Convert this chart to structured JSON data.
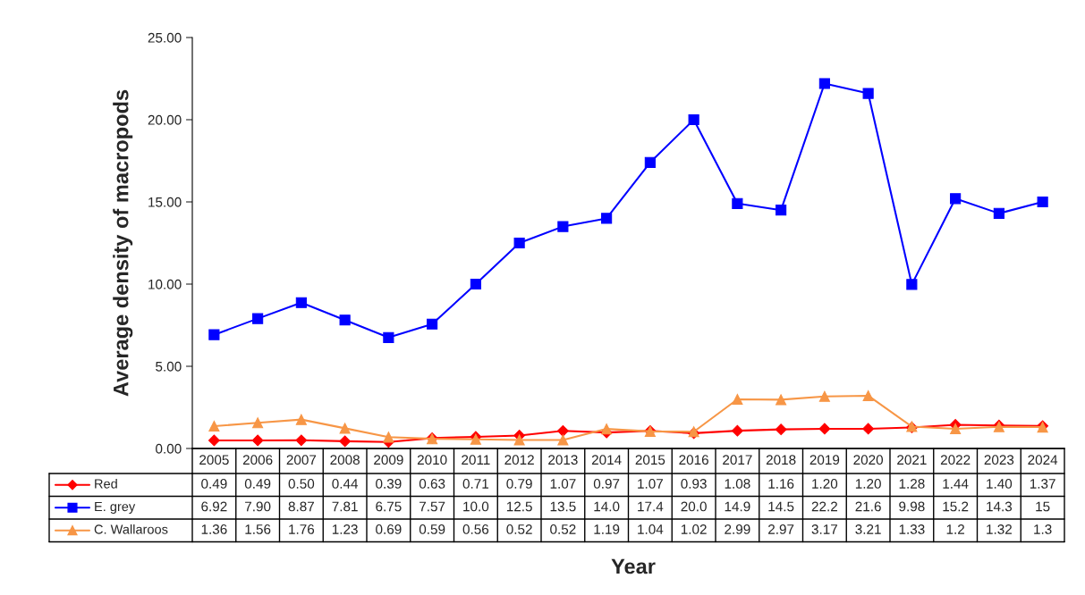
{
  "chart_data": {
    "type": "line",
    "xlabel": "Year",
    "ylabel": "Average density of macropods",
    "categories": [
      "2005",
      "2006",
      "2007",
      "2008",
      "2009",
      "2010",
      "2011",
      "2012",
      "2013",
      "2014",
      "2015",
      "2016",
      "2017",
      "2018",
      "2019",
      "2020",
      "2021",
      "2022",
      "2023",
      "2024"
    ],
    "ylim": [
      0,
      25
    ],
    "yticks": [
      {
        "value": 0,
        "label": "0.00"
      },
      {
        "value": 5,
        "label": "5.00"
      },
      {
        "value": 10,
        "label": "10.00"
      },
      {
        "value": 15,
        "label": "15.00"
      },
      {
        "value": 20,
        "label": "20.00"
      },
      {
        "value": 25,
        "label": "25.00"
      }
    ],
    "grid": false,
    "data_labels": true,
    "legend": "bottom left",
    "series": [
      {
        "name": "Red",
        "color": "#ff0000",
        "marker": "diamond",
        "values": [
          0.49,
          0.49,
          0.5,
          0.44,
          0.39,
          0.63,
          0.71,
          0.79,
          1.07,
          0.97,
          1.07,
          0.93,
          1.08,
          1.16,
          1.2,
          1.2,
          1.28,
          1.44,
          1.4,
          1.37
        ],
        "value_labels": [
          "0.49",
          "0.49",
          "0.50",
          "0.44",
          "0.39",
          "0.63",
          "0.71",
          "0.79",
          "1.07",
          "0.97",
          "1.07",
          "0.93",
          "1.08",
          "1.16",
          "1.20",
          "1.20",
          "1.28",
          "1.44",
          "1.40",
          "1.37"
        ]
      },
      {
        "name": "E. grey",
        "color": "#0000ff",
        "marker": "square",
        "values": [
          6.92,
          7.9,
          8.87,
          7.81,
          6.75,
          7.57,
          10.0,
          12.5,
          13.5,
          14.0,
          17.4,
          20.0,
          14.9,
          14.5,
          22.2,
          21.6,
          9.98,
          15.2,
          14.3,
          15
        ],
        "value_labels": [
          "6.92",
          "7.90",
          "8.87",
          "7.81",
          "6.75",
          "7.57",
          "10.0",
          "12.5",
          "13.5",
          "14.0",
          "17.4",
          "20.0",
          "14.9",
          "14.5",
          "22.2",
          "21.6",
          "9.98",
          "15.2",
          "14.3",
          "15"
        ]
      },
      {
        "name": "C. Wallaroos",
        "color": "#f79646",
        "marker": "triangle",
        "values": [
          1.36,
          1.56,
          1.76,
          1.23,
          0.69,
          0.59,
          0.56,
          0.52,
          0.52,
          1.19,
          1.04,
          1.02,
          2.99,
          2.97,
          3.17,
          3.21,
          1.33,
          1.2,
          1.32,
          1.3
        ],
        "value_labels": [
          "1.36",
          "1.56",
          "1.76",
          "1.23",
          "0.69",
          "0.59",
          "0.56",
          "0.52",
          "0.52",
          "1.19",
          "1.04",
          "1.02",
          "2.99",
          "2.97",
          "3.17",
          "3.21",
          "1.33",
          "1.2",
          "1.32",
          "1.3"
        ]
      }
    ]
  }
}
